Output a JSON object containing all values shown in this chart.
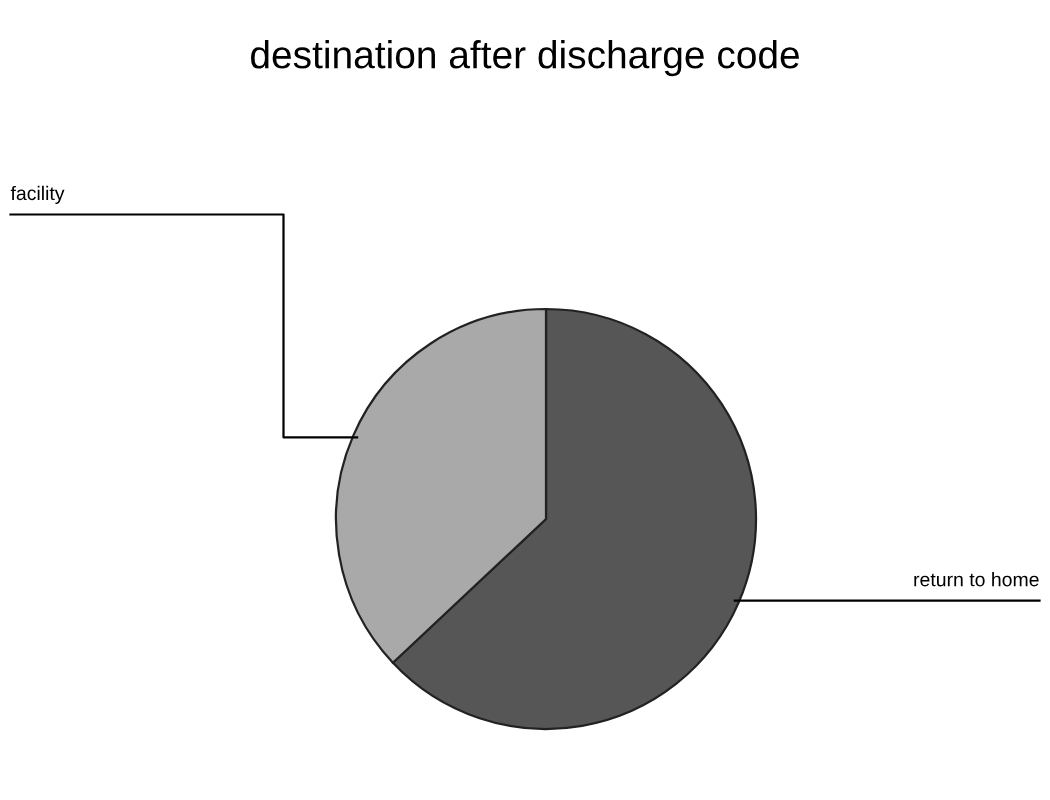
{
  "chart_data": {
    "type": "pie",
    "title": "destination after discharge code",
    "categories": [
      "return to home",
      "facility"
    ],
    "values": [
      63,
      37
    ],
    "colors": [
      "#565656",
      "#a9a9a9"
    ]
  }
}
